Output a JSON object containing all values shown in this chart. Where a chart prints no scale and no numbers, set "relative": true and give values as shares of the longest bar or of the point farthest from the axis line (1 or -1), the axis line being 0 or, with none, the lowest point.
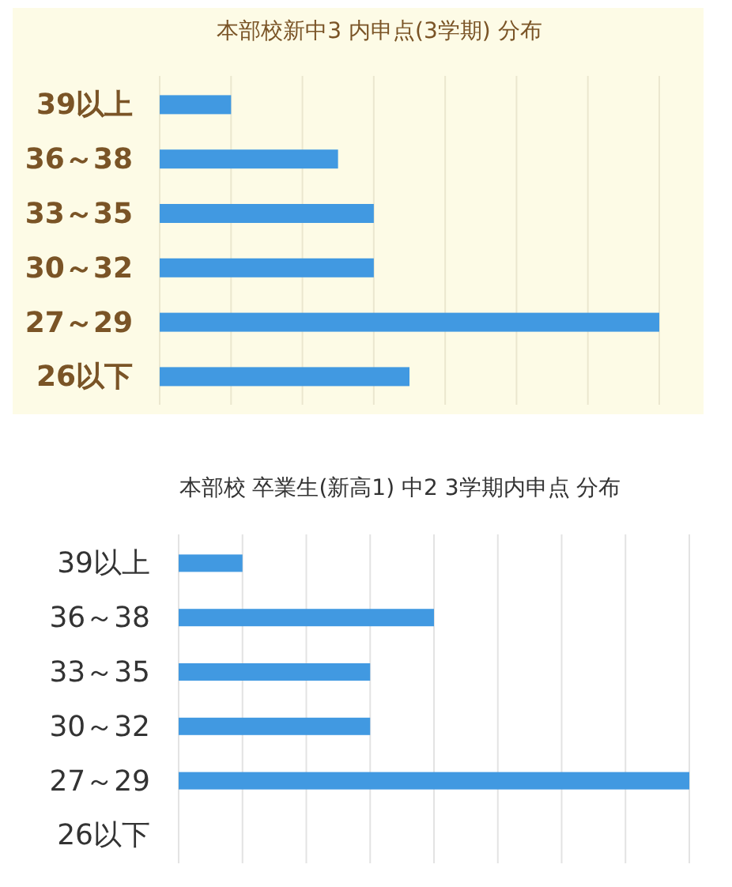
{
  "chart_data": [
    {
      "type": "bar",
      "orientation": "horizontal",
      "relative": true,
      "title": "本部校新中3 内申点(3学期) 分布",
      "categories": [
        "39以上",
        "36～38",
        "33～35",
        "30～32",
        "27～29",
        "26以下"
      ],
      "series": [
        {
          "color": "#4199e1",
          "values": [
            0.1429,
            0.357,
            0.4286,
            0.4286,
            1,
            0.5
          ]
        }
      ],
      "grid": "x"
    },
    {
      "type": "bar",
      "orientation": "horizontal",
      "relative": true,
      "title": "本部校 卒業生(新高1) 中2 3学期内申点 分布",
      "categories": [
        "39以上",
        "36～38",
        "33～35",
        "30～32",
        "27～29",
        "26以下"
      ],
      "series": [
        {
          "color": "#4199e1",
          "values": [
            0.125,
            0.5,
            0.375,
            0.375,
            1,
            0
          ]
        }
      ],
      "grid": "x"
    }
  ]
}
